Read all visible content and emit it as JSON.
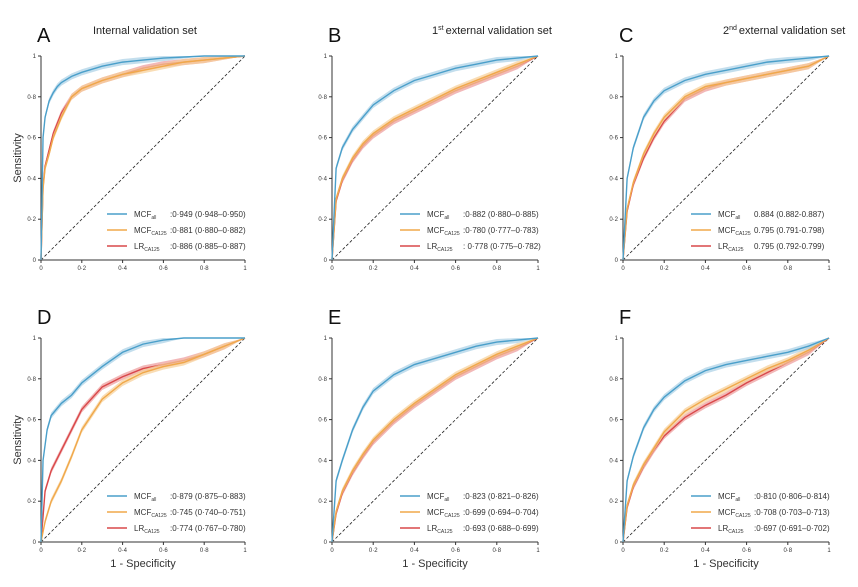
{
  "figure": {
    "ylabel": "Sensitivity",
    "xlabel": "1 - Specificity",
    "colors": {
      "mcf_all": "#4a9fca",
      "mcf_ca125": "#f0a84a",
      "lr_ca125": "#d9484a",
      "band_blue": "#a9d0e6",
      "band_orange": "#f6cf96",
      "band_red": "#ec9a9a",
      "axis": "#333333",
      "diag": "#222222"
    }
  },
  "chart_data": [
    {
      "type": "line",
      "panel_letter": "A",
      "title": "Internal validation set",
      "title_sup": "",
      "x_ticks": [
        "0",
        "0·2",
        "0·4",
        "0·6",
        "0·8",
        "1"
      ],
      "y_ticks": [
        "0",
        "0·2",
        "0·4",
        "0·6",
        "0·8",
        "1"
      ],
      "xlim": [
        0,
        1
      ],
      "ylim": [
        0,
        1
      ],
      "grid": false,
      "legend_position": "bottom-right",
      "show_ylabel": true,
      "show_xlabel": false,
      "series": [
        {
          "name": "MCF",
          "sub": "all",
          "auc": ":0·949 (0·948–0·950)",
          "color": "#4a9fca",
          "x": [
            0,
            0.01,
            0.02,
            0.04,
            0.06,
            0.08,
            0.1,
            0.15,
            0.2,
            0.3,
            0.4,
            0.5,
            0.6,
            0.8,
            1
          ],
          "y": [
            0,
            0.6,
            0.7,
            0.78,
            0.82,
            0.85,
            0.87,
            0.9,
            0.92,
            0.95,
            0.97,
            0.98,
            0.99,
            1,
            1
          ]
        },
        {
          "name": "MCF",
          "sub": "CA125",
          "auc": ":0·881 (0·880–0·882)",
          "color": "#f0a84a",
          "x": [
            0,
            0.01,
            0.02,
            0.04,
            0.06,
            0.1,
            0.15,
            0.2,
            0.3,
            0.4,
            0.5,
            0.6,
            0.7,
            0.8,
            1
          ],
          "y": [
            0,
            0.35,
            0.45,
            0.52,
            0.6,
            0.7,
            0.8,
            0.84,
            0.88,
            0.91,
            0.93,
            0.95,
            0.97,
            0.98,
            1
          ]
        },
        {
          "name": "LR",
          "sub": "CA125",
          "auc": ":0·886 (0·885–0·887)",
          "color": "#d9484a",
          "x": [
            0,
            0.01,
            0.02,
            0.04,
            0.06,
            0.1,
            0.15,
            0.2,
            0.3,
            0.4,
            0.5,
            0.6,
            0.7,
            0.8,
            1
          ],
          "y": [
            0,
            0.36,
            0.46,
            0.54,
            0.62,
            0.72,
            0.8,
            0.84,
            0.88,
            0.91,
            0.94,
            0.96,
            0.97,
            0.98,
            1
          ]
        }
      ]
    },
    {
      "type": "line",
      "panel_letter": "B",
      "title": "external validation set",
      "title_sup": "st",
      "title_num": "1",
      "x_ticks": [
        "0",
        "0·2",
        "0·4",
        "0·6",
        "0·8",
        "1"
      ],
      "y_ticks": [
        "0",
        "0·2",
        "0·4",
        "0·6",
        "0·8",
        "1"
      ],
      "xlim": [
        0,
        1
      ],
      "ylim": [
        0,
        1
      ],
      "grid": false,
      "legend_position": "bottom-right",
      "show_ylabel": false,
      "show_xlabel": false,
      "series": [
        {
          "name": "MCF",
          "sub": "all",
          "auc": ":0·882 (0·880–0·885)",
          "color": "#4a9fca",
          "x": [
            0,
            0.02,
            0.05,
            0.1,
            0.15,
            0.2,
            0.3,
            0.4,
            0.5,
            0.6,
            0.7,
            0.8,
            0.9,
            1
          ],
          "y": [
            0,
            0.45,
            0.55,
            0.64,
            0.7,
            0.76,
            0.83,
            0.88,
            0.91,
            0.94,
            0.96,
            0.98,
            0.99,
            1
          ]
        },
        {
          "name": "MCF",
          "sub": "CA125",
          "auc": ":0·780 (0·777–0·783)",
          "color": "#f0a84a",
          "x": [
            0,
            0.02,
            0.05,
            0.1,
            0.15,
            0.2,
            0.3,
            0.4,
            0.5,
            0.6,
            0.7,
            0.8,
            0.9,
            1
          ],
          "y": [
            0,
            0.3,
            0.4,
            0.5,
            0.57,
            0.62,
            0.69,
            0.74,
            0.79,
            0.84,
            0.88,
            0.92,
            0.96,
            1
          ]
        },
        {
          "name": "LR",
          "sub": "CA125",
          "auc": ": 0·778 (0·775–0·782)",
          "color": "#d9484a",
          "x": [
            0,
            0.02,
            0.05,
            0.1,
            0.15,
            0.2,
            0.3,
            0.4,
            0.5,
            0.6,
            0.7,
            0.8,
            0.9,
            1
          ],
          "y": [
            0,
            0.29,
            0.39,
            0.49,
            0.56,
            0.61,
            0.68,
            0.73,
            0.78,
            0.83,
            0.87,
            0.91,
            0.95,
            1
          ]
        }
      ]
    },
    {
      "type": "line",
      "panel_letter": "C",
      "title": "external validation set",
      "title_sup": "nd",
      "title_num": "2",
      "x_ticks": [
        "0",
        "0·2",
        "0·4",
        "0·6",
        "0·8",
        "1"
      ],
      "y_ticks": [
        "0",
        "0·2",
        "0·4",
        "0·6",
        "0·8",
        "1"
      ],
      "xlim": [
        0,
        1
      ],
      "ylim": [
        0,
        1
      ],
      "grid": false,
      "legend_position": "bottom-right",
      "show_ylabel": false,
      "show_xlabel": false,
      "series": [
        {
          "name": "MCF",
          "sub": "all",
          "auc": "0.884 (0.882-0.887)",
          "color": "#4a9fca",
          "x": [
            0,
            0.02,
            0.05,
            0.1,
            0.15,
            0.2,
            0.3,
            0.4,
            0.5,
            0.6,
            0.7,
            0.8,
            0.9,
            1
          ],
          "y": [
            0,
            0.4,
            0.55,
            0.7,
            0.78,
            0.83,
            0.88,
            0.91,
            0.93,
            0.95,
            0.97,
            0.98,
            0.99,
            1
          ]
        },
        {
          "name": "MCF",
          "sub": "CA125",
          "auc": "0.795 (0.791-0.798)",
          "color": "#f0a84a",
          "x": [
            0,
            0.02,
            0.05,
            0.1,
            0.15,
            0.2,
            0.3,
            0.4,
            0.5,
            0.6,
            0.7,
            0.8,
            0.9,
            1
          ],
          "y": [
            0,
            0.25,
            0.38,
            0.52,
            0.62,
            0.7,
            0.8,
            0.85,
            0.87,
            0.89,
            0.91,
            0.93,
            0.95,
            1
          ]
        },
        {
          "name": "LR",
          "sub": "CA125",
          "auc": "0.795 (0.792-0.799)",
          "color": "#d9484a",
          "x": [
            0,
            0.02,
            0.05,
            0.1,
            0.15,
            0.2,
            0.3,
            0.4,
            0.5,
            0.6,
            0.7,
            0.8,
            0.9,
            1
          ],
          "y": [
            0,
            0.24,
            0.37,
            0.5,
            0.6,
            0.68,
            0.79,
            0.84,
            0.87,
            0.89,
            0.91,
            0.93,
            0.95,
            1
          ]
        }
      ]
    },
    {
      "type": "line",
      "panel_letter": "D",
      "title": "",
      "title_sup": "",
      "x_ticks": [
        "0",
        "0·2",
        "0·4",
        "0·6",
        "0·8",
        "1"
      ],
      "y_ticks": [
        "0",
        "0·2",
        "0·4",
        "0·6",
        "0·8",
        "1"
      ],
      "xlim": [
        0,
        1
      ],
      "ylim": [
        0,
        1
      ],
      "grid": false,
      "legend_position": "bottom-right",
      "show_ylabel": true,
      "show_xlabel": true,
      "series": [
        {
          "name": "MCF",
          "sub": "all",
          "auc": ":0·879 (0·875–0·883)",
          "color": "#4a9fca",
          "x": [
            0,
            0.01,
            0.03,
            0.05,
            0.1,
            0.15,
            0.2,
            0.3,
            0.4,
            0.5,
            0.6,
            0.7,
            0.8,
            1
          ],
          "y": [
            0,
            0.4,
            0.55,
            0.62,
            0.68,
            0.72,
            0.78,
            0.86,
            0.93,
            0.97,
            0.99,
            1,
            1,
            1
          ]
        },
        {
          "name": "MCF",
          "sub": "CA125",
          "auc": ":0·745 (0·740–0·751)",
          "color": "#f0a84a",
          "x": [
            0,
            0.02,
            0.05,
            0.1,
            0.15,
            0.2,
            0.3,
            0.4,
            0.5,
            0.6,
            0.7,
            0.8,
            0.9,
            1
          ],
          "y": [
            0,
            0.1,
            0.2,
            0.3,
            0.42,
            0.55,
            0.7,
            0.78,
            0.83,
            0.86,
            0.88,
            0.92,
            0.96,
            1
          ]
        },
        {
          "name": "LR",
          "sub": "CA125",
          "auc": ":0·774 (0·767–0·780)",
          "color": "#d9484a",
          "x": [
            0,
            0.02,
            0.05,
            0.1,
            0.15,
            0.2,
            0.3,
            0.4,
            0.5,
            0.6,
            0.7,
            0.8,
            0.9,
            1
          ],
          "y": [
            0,
            0.25,
            0.35,
            0.45,
            0.55,
            0.65,
            0.76,
            0.81,
            0.85,
            0.87,
            0.89,
            0.92,
            0.96,
            1
          ]
        }
      ]
    },
    {
      "type": "line",
      "panel_letter": "E",
      "title": "",
      "title_sup": "",
      "x_ticks": [
        "0",
        "0·2",
        "0·4",
        "0·6",
        "0·8",
        "1"
      ],
      "y_ticks": [
        "0",
        "0·2",
        "0·4",
        "0·6",
        "0·8",
        "1"
      ],
      "xlim": [
        0,
        1
      ],
      "ylim": [
        0,
        1
      ],
      "grid": false,
      "legend_position": "bottom-right",
      "show_ylabel": false,
      "show_xlabel": true,
      "series": [
        {
          "name": "MCF",
          "sub": "all",
          "auc": ":0·823 (0·821–0·826)",
          "color": "#4a9fca",
          "x": [
            0,
            0.02,
            0.05,
            0.1,
            0.15,
            0.2,
            0.3,
            0.4,
            0.5,
            0.6,
            0.7,
            0.8,
            0.9,
            1
          ],
          "y": [
            0,
            0.3,
            0.4,
            0.55,
            0.66,
            0.74,
            0.82,
            0.87,
            0.9,
            0.93,
            0.96,
            0.98,
            0.99,
            1
          ]
        },
        {
          "name": "MCF",
          "sub": "CA125",
          "auc": ":0·699 (0·694–0·704)",
          "color": "#f0a84a",
          "x": [
            0,
            0.02,
            0.05,
            0.1,
            0.15,
            0.2,
            0.3,
            0.4,
            0.5,
            0.6,
            0.7,
            0.8,
            0.9,
            1
          ],
          "y": [
            0,
            0.15,
            0.25,
            0.35,
            0.43,
            0.5,
            0.6,
            0.68,
            0.75,
            0.82,
            0.87,
            0.92,
            0.96,
            1
          ]
        },
        {
          "name": "LR",
          "sub": "CA125",
          "auc": ":0·693 (0·688–0·699)",
          "color": "#d9484a",
          "x": [
            0,
            0.02,
            0.05,
            0.1,
            0.15,
            0.2,
            0.3,
            0.4,
            0.5,
            0.6,
            0.7,
            0.8,
            0.9,
            1
          ],
          "y": [
            0,
            0.14,
            0.24,
            0.34,
            0.42,
            0.49,
            0.59,
            0.67,
            0.74,
            0.81,
            0.86,
            0.91,
            0.95,
            1
          ]
        }
      ]
    },
    {
      "type": "line",
      "panel_letter": "F",
      "title": "",
      "title_sup": "",
      "x_ticks": [
        "0",
        "0·2",
        "0·4",
        "0·6",
        "0·8",
        "1"
      ],
      "y_ticks": [
        "0",
        "0·2",
        "0·4",
        "0·6",
        "0·8",
        "1"
      ],
      "xlim": [
        0,
        1
      ],
      "ylim": [
        0,
        1
      ],
      "grid": false,
      "legend_position": "bottom-right",
      "show_ylabel": false,
      "show_xlabel": true,
      "series": [
        {
          "name": "MCF",
          "sub": "all",
          "auc": ":0·810 (0·806–0·814)",
          "color": "#4a9fca",
          "x": [
            0,
            0.02,
            0.05,
            0.1,
            0.15,
            0.2,
            0.3,
            0.4,
            0.5,
            0.6,
            0.7,
            0.8,
            0.9,
            1
          ],
          "y": [
            0,
            0.3,
            0.42,
            0.56,
            0.65,
            0.71,
            0.79,
            0.84,
            0.87,
            0.89,
            0.91,
            0.93,
            0.96,
            1
          ]
        },
        {
          "name": "MCF",
          "sub": "CA125",
          "auc": ":0·708 (0·703–0·713)",
          "color": "#f0a84a",
          "x": [
            0,
            0.02,
            0.05,
            0.1,
            0.15,
            0.2,
            0.3,
            0.4,
            0.5,
            0.6,
            0.7,
            0.8,
            0.9,
            1
          ],
          "y": [
            0,
            0.18,
            0.28,
            0.38,
            0.46,
            0.54,
            0.64,
            0.7,
            0.75,
            0.8,
            0.85,
            0.89,
            0.94,
            1
          ]
        },
        {
          "name": "LR",
          "sub": "CA125",
          "auc": ":0·697 (0·691–0·702)",
          "color": "#d9484a",
          "x": [
            0,
            0.02,
            0.05,
            0.1,
            0.15,
            0.2,
            0.3,
            0.4,
            0.5,
            0.6,
            0.7,
            0.8,
            0.9,
            1
          ],
          "y": [
            0,
            0.17,
            0.27,
            0.37,
            0.45,
            0.52,
            0.61,
            0.67,
            0.72,
            0.78,
            0.83,
            0.88,
            0.93,
            1
          ]
        }
      ]
    }
  ]
}
